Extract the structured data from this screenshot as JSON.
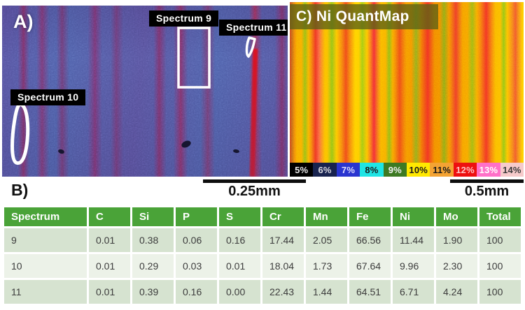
{
  "panel_a": {
    "label": "A)",
    "annotations": [
      {
        "label": "Spectrum 9"
      },
      {
        "label": "Spectrum 10"
      },
      {
        "label": "Spectrum 11"
      }
    ],
    "scale_bar_label": "0.25mm"
  },
  "panel_b": {
    "label": "B)"
  },
  "panel_c": {
    "title": "C) Ni QuantMap",
    "scale_bar_label": "0.5mm",
    "legend": [
      {
        "label": "5%",
        "bg": "#000000",
        "fg": "#e8e8e8"
      },
      {
        "label": "6%",
        "bg": "#18234f",
        "fg": "#d8d8e0"
      },
      {
        "label": "7%",
        "bg": "#2a35d0",
        "fg": "#dcdcff"
      },
      {
        "label": "8%",
        "bg": "#1fe4e4",
        "fg": "#1a1a1a"
      },
      {
        "label": "9%",
        "bg": "#3d7a23",
        "fg": "#f0f0f0"
      },
      {
        "label": "10%",
        "bg": "#ffe800",
        "fg": "#1a1a1a"
      },
      {
        "label": "11%",
        "bg": "#f4a333",
        "fg": "#1a1a1a"
      },
      {
        "label": "12%",
        "bg": "#ee1010",
        "fg": "#ffc4c4"
      },
      {
        "label": "13%",
        "bg": "#ff70c8",
        "fg": "#ffffff"
      },
      {
        "label": "14%",
        "bg": "#f6caca",
        "fg": "#3a3a3a"
      }
    ]
  },
  "table": {
    "header_bg": "#4aa338",
    "row_bg_a": "#d6e3d0",
    "row_bg_b": "#ecf2e8",
    "headers": [
      "Spectrum",
      "C",
      "Si",
      "P",
      "S",
      "Cr",
      "Mn",
      "Fe",
      "Ni",
      "Mo",
      "Total"
    ],
    "rows": [
      [
        "9",
        "0.01",
        "0.38",
        "0.06",
        "0.16",
        "17.44",
        "2.05",
        "66.56",
        "11.44",
        "1.90",
        "100"
      ],
      [
        "10",
        "0.01",
        "0.29",
        "0.03",
        "0.01",
        "18.04",
        "1.73",
        "67.64",
        "9.96",
        "2.30",
        "100"
      ],
      [
        "11",
        "0.01",
        "0.39",
        "0.16",
        "0.00",
        "22.43",
        "1.44",
        "64.51",
        "6.71",
        "4.24",
        "100"
      ]
    ]
  }
}
